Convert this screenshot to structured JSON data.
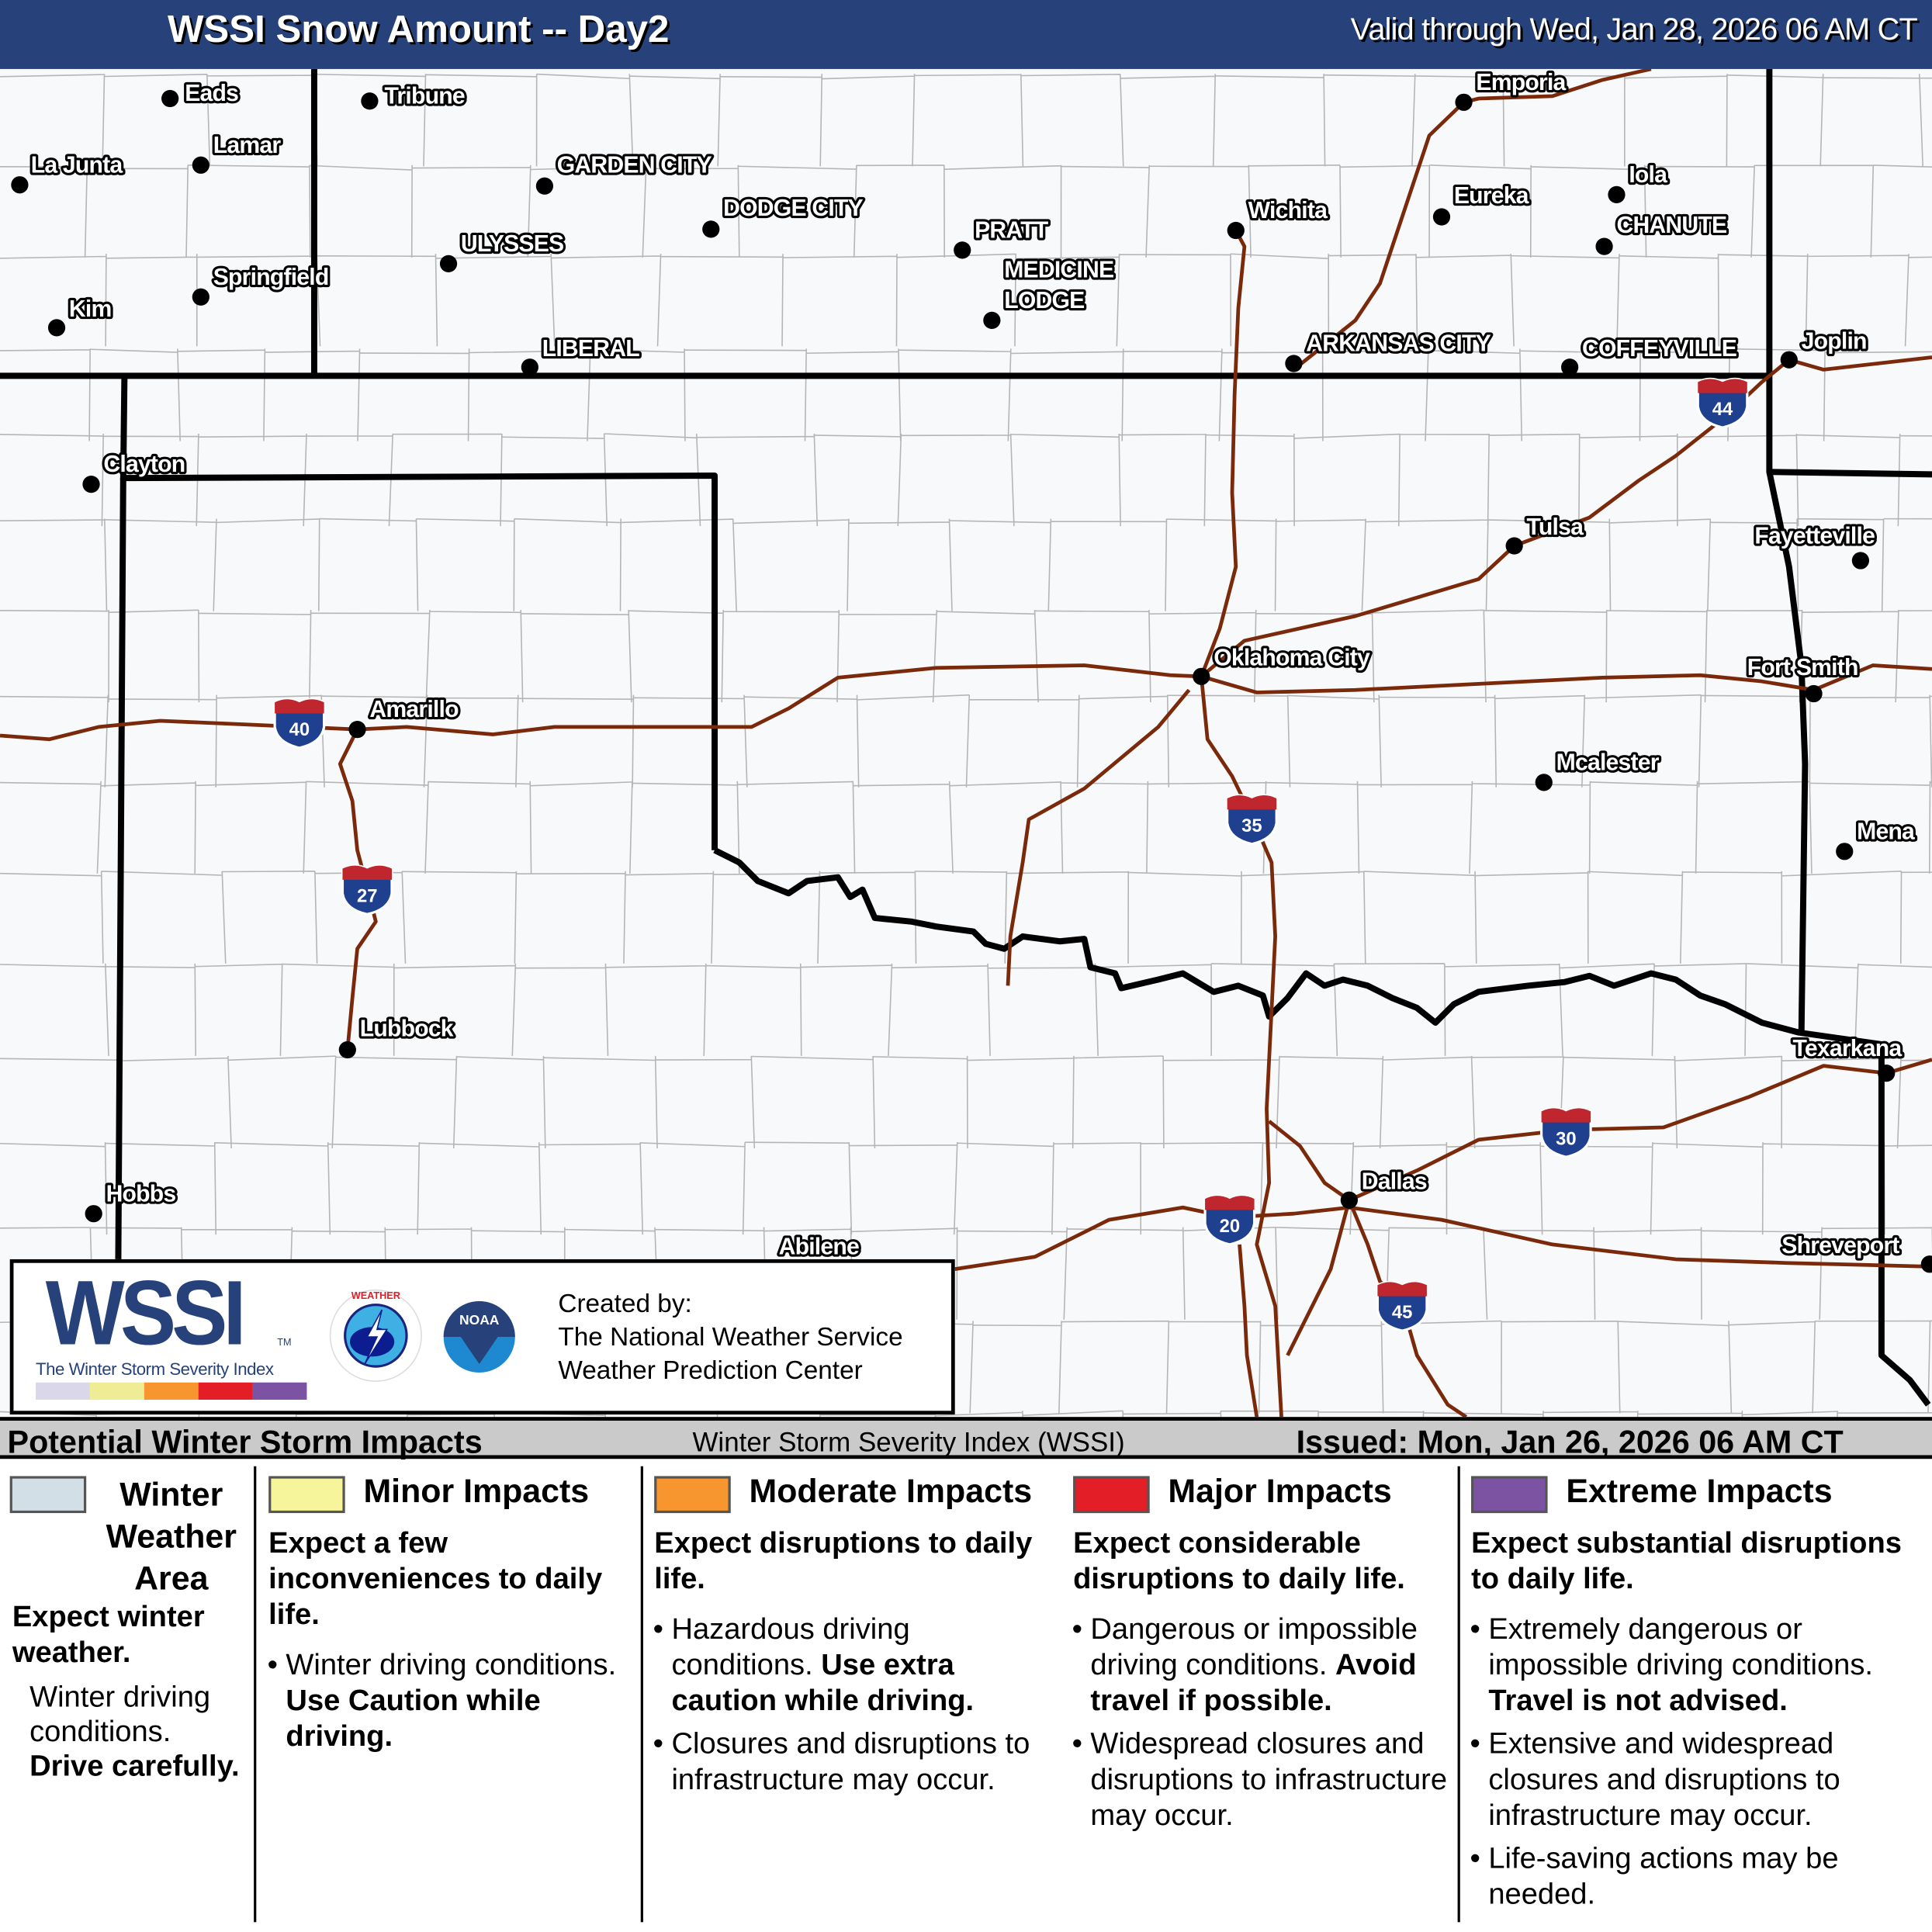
{
  "header": {
    "title": "WSSI Snow Amount -- Day2",
    "valid": "Valid through Wed, Jan 28, 2026 06 AM CT"
  },
  "colors": {
    "title_bar": "#27427a",
    "interstate": "#7a2a0a",
    "state_border": "#000000",
    "county_line": "#b5b5b5",
    "map_bg": "#f8f9fb"
  },
  "cities": [
    "Eads",
    "Tribune",
    "La Junta",
    "Lamar",
    "GARDEN CITY",
    "DODGE CITY",
    "ULYSSES",
    "PRATT",
    "MEDICINE",
    "LODGE",
    "Springfield",
    "Kim",
    "LIBERAL",
    "Wichita",
    "Emporia",
    "Eureka",
    "Iola",
    "CHANUTE",
    "ARKANSAS CITY",
    "COFFEYVILLE",
    "Joplin",
    "Clayton",
    "Tulsa",
    "Fayetteville",
    "Oklahoma City",
    "Fort Smith",
    "Amarillo",
    "Mcalester",
    "Mena",
    "Lubbock",
    "Texarkana",
    "Dallas",
    "Hobbs",
    "Abilene",
    "Shreveport"
  ],
  "interstates": [
    "40",
    "27",
    "44",
    "35",
    "30",
    "20",
    "45"
  ],
  "credit": {
    "logo": "WSSI",
    "tm": "TM",
    "logo_sub": "The Winter Storm Severity Index",
    "nws_logo": "NATIONAL WEATHER SERVICE",
    "noaa_logo": "NOAA",
    "created_by": "Created by:",
    "org1": "The National Weather Service",
    "org2": "Weather Prediction Center",
    "scale_colors": [
      "#d9d7e8",
      "#eeec94",
      "#f7962f",
      "#e31e26",
      "#7c53a2"
    ]
  },
  "legend": {
    "title": "Potential Winter Storm Impacts",
    "index_name": "Winter Storm Severity Index (WSSI)",
    "issued": "Issued: Mon, Jan 26, 2026 06 AM CT",
    "categories": [
      {
        "color": "#d3dfe7",
        "title_lines": [
          "Winter",
          "Weather",
          "Area"
        ],
        "lead": "Expect winter weather.",
        "text": "Winter driving conditions.",
        "bold": "Drive carefully."
      },
      {
        "color": "#f7f59b",
        "title": "Minor Impacts",
        "lead": "Expect a few inconveniences to daily life.",
        "bullets": [
          {
            "text": "Winter driving conditions. ",
            "bold": "Use Caution while driving."
          }
        ]
      },
      {
        "color": "#f7962f",
        "title": "Moderate Impacts",
        "lead": "Expect disruptions to daily life.",
        "bullets": [
          {
            "text": "Hazardous driving conditions. ",
            "bold": "Use extra caution while driving."
          },
          {
            "text": "Closures and disruptions to infrastructure may occur.",
            "bold": ""
          }
        ]
      },
      {
        "color": "#e31e26",
        "title": "Major Impacts",
        "lead": "Expect considerable disruptions to daily life.",
        "bullets": [
          {
            "text": "Dangerous or impossible driving conditions. ",
            "bold": "Avoid travel if possible."
          },
          {
            "text": "Widespread closures and disruptions to infrastructure may occur.",
            "bold": ""
          }
        ]
      },
      {
        "color": "#7c53a2",
        "title": "Extreme Impacts",
        "lead": "Expect substantial disruptions to daily life.",
        "bullets": [
          {
            "text": "Extremely dangerous or impossible driving conditions. ",
            "bold": "Travel is not advised."
          },
          {
            "text": "Extensive and widespread closures and disruptions to infrastructure may occur.",
            "bold": ""
          },
          {
            "text": "Life-saving actions may be needed.",
            "bold": ""
          }
        ]
      }
    ]
  }
}
